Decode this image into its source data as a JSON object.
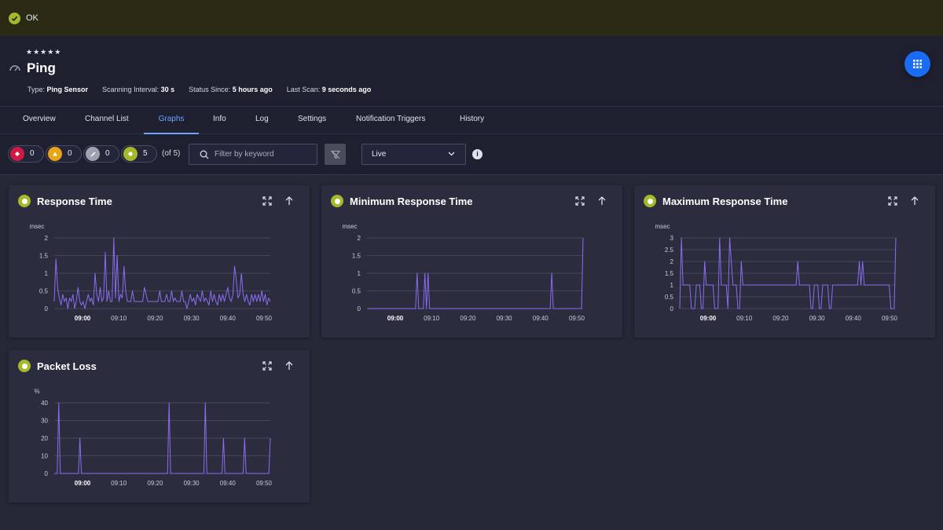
{
  "status_bar": {
    "icon": "check-circle-icon",
    "label": "OK",
    "color": "#a6b92a"
  },
  "sensor": {
    "stars": "★★★★★",
    "title": "Ping",
    "meta": [
      {
        "label": "Type:",
        "value": "Ping Sensor"
      },
      {
        "label": "Scanning Interval:",
        "value": "30 s"
      },
      {
        "label": "Status Since:",
        "value": "5 hours ago"
      },
      {
        "label": "Last Scan:",
        "value": "9 seconds ago"
      }
    ]
  },
  "tabs": [
    "Overview",
    "Channel List",
    "Graphs",
    "Info",
    "Log",
    "Settings",
    "Notification Triggers",
    "History"
  ],
  "active_tab": "Graphs",
  "toolbar": {
    "status_filters": [
      {
        "status": "down",
        "count": "0",
        "color": "#d01a45"
      },
      {
        "status": "warning",
        "count": "0",
        "color": "#e8a317"
      },
      {
        "status": "paused",
        "count": "0",
        "color": "#9fa2b0"
      },
      {
        "status": "up",
        "count": "5",
        "color": "#a6b92a"
      }
    ],
    "of_total": "(of 5)",
    "filter_placeholder": "Filter by keyword",
    "time_select": "Live"
  },
  "colors": {
    "accent": "#1a6cf5",
    "series": "#8c6cf0",
    "up": "#a6b92a"
  },
  "chart_data": [
    {
      "type": "line",
      "title": "Response Time",
      "ylabel": "msec",
      "ylim": [
        0,
        2
      ],
      "yticks": [
        "0",
        "0.5",
        "1",
        "1.5",
        "2"
      ],
      "xticks": [
        "09:00",
        "09:10",
        "09:20",
        "09:30",
        "09:40",
        "09:50"
      ],
      "series": [
        {
          "values": [
            0.2,
            1.4,
            0.6,
            0.3,
            0.1,
            0.4,
            0.2,
            0.3,
            0,
            0.3,
            0.2,
            0.4,
            0,
            0.2,
            0.6,
            0.2,
            0.1,
            0.2,
            0,
            0.2,
            0.4,
            0.2,
            0.3,
            0.1,
            1,
            0.4,
            0.2,
            0.6,
            0.2,
            0.3,
            1.6,
            0.2,
            0.5,
            0.2,
            0.2,
            2,
            0.3,
            1.5,
            0.2,
            0.4,
            0.3,
            1.2,
            0.5,
            0.2,
            0.2,
            0.2,
            0.5,
            0.2,
            0.2,
            0.2,
            0.2,
            0.2,
            0.2,
            0.6,
            0.4,
            0.2,
            0.2,
            0.2,
            0.2,
            0.2,
            0.2,
            0.2,
            0.5,
            0.2,
            0.2,
            0.2,
            0.4,
            0.2,
            0.2,
            0.5,
            0.2,
            0.3,
            0.2,
            0.2,
            0.2,
            0.5,
            0.2,
            0.2,
            0,
            0.2,
            0.4,
            0.2,
            0.3,
            0.1,
            0.4,
            0.3,
            0.2,
            0.5,
            0.2,
            0.3,
            0.2,
            0.1,
            0.5,
            0.2,
            0.4,
            0.2,
            0.1,
            0.4,
            0.2,
            0.4,
            0.2,
            0.4,
            0.6,
            0.3,
            0.2,
            0.4,
            1.2,
            0.8,
            0.3,
            0.4,
            1,
            0.4,
            0.2,
            0.4,
            0.2,
            0.1,
            0.4,
            0.2,
            0.4,
            0.2,
            0.4,
            0.2,
            0.5,
            0.2,
            0.4,
            0.1,
            0.3,
            0.2
          ]
        }
      ]
    },
    {
      "type": "line",
      "title": "Minimum Response Time",
      "ylabel": "msec",
      "ylim": [
        0,
        2
      ],
      "yticks": [
        "0",
        "0.5",
        "1",
        "1.5",
        "2"
      ],
      "xticks": [
        "09:00",
        "09:10",
        "09:20",
        "09:30",
        "09:40",
        "09:50"
      ],
      "series": [
        {
          "values": [
            0,
            0,
            0,
            0,
            0,
            0,
            0,
            0,
            0,
            0,
            0,
            0,
            0,
            0,
            0,
            0,
            0,
            0,
            0,
            0,
            0,
            0,
            0,
            0,
            0,
            0,
            0,
            0,
            0,
            0,
            0,
            0,
            1,
            0,
            0,
            0,
            0,
            1,
            0,
            1,
            0,
            0,
            0,
            0,
            0,
            0,
            0,
            0,
            0,
            0,
            0,
            0,
            0,
            0,
            0,
            0,
            0,
            0,
            0,
            0,
            0,
            0,
            0,
            0,
            0,
            0,
            0,
            0,
            0,
            0,
            0,
            0,
            0,
            0,
            0,
            0,
            0,
            0,
            0,
            0,
            0,
            0,
            0,
            0,
            0,
            0,
            0,
            0,
            0,
            0,
            0,
            0,
            0,
            0,
            0,
            0,
            0,
            0,
            0,
            0,
            0,
            0,
            0,
            0,
            0,
            0,
            0,
            0,
            0,
            0,
            0,
            0,
            0,
            0,
            0,
            0,
            0,
            0,
            1,
            0,
            0,
            0,
            0,
            0,
            0,
            0,
            0,
            0,
            0,
            0,
            0,
            0,
            0,
            0,
            0,
            0,
            0,
            0,
            2
          ]
        }
      ]
    },
    {
      "type": "line",
      "title": "Maximum Response Time",
      "ylabel": "msec",
      "ylim": [
        0,
        3
      ],
      "yticks": [
        "0",
        "0.5",
        "1",
        "1.5",
        "2",
        "2.5",
        "3"
      ],
      "xticks": [
        "09:00",
        "09:10",
        "09:20",
        "09:30",
        "09:40",
        "09:50"
      ],
      "series": [
        {
          "values": [
            0,
            3,
            1,
            1,
            1,
            1,
            1,
            0,
            0,
            0,
            1,
            1,
            1,
            0,
            0,
            2,
            1,
            1,
            1,
            1,
            1,
            0,
            0,
            0,
            3,
            1,
            1,
            1,
            1,
            0,
            3,
            2,
            1,
            1,
            1,
            0,
            0,
            2,
            1,
            1,
            1,
            1,
            1,
            1,
            1,
            1,
            1,
            1,
            1,
            1,
            1,
            1,
            1,
            1,
            1,
            1,
            1,
            1,
            1,
            1,
            1,
            1,
            1,
            1,
            1,
            1,
            1,
            1,
            1,
            1,
            1,
            2,
            1,
            1,
            1,
            1,
            1,
            1,
            1,
            0,
            0,
            1,
            1,
            1,
            0,
            0,
            1,
            1,
            1,
            1,
            0,
            0,
            1,
            1,
            1,
            1,
            1,
            1,
            1,
            1,
            1,
            1,
            1,
            1,
            1,
            1,
            1,
            1,
            2,
            1,
            2,
            1,
            1,
            1,
            1,
            1,
            1,
            1,
            1,
            1,
            1,
            1,
            1,
            1,
            1,
            1,
            1,
            0,
            0,
            0,
            3
          ]
        }
      ]
    },
    {
      "type": "line",
      "title": "Packet Loss",
      "ylabel": "%",
      "ylim": [
        0,
        40
      ],
      "yticks": [
        "0",
        "10",
        "20",
        "30",
        "40"
      ],
      "xticks": [
        "09:00",
        "09:10",
        "09:20",
        "09:30",
        "09:40",
        "09:50"
      ],
      "series": [
        {
          "values": [
            0,
            0,
            0,
            40,
            0,
            0,
            0,
            0,
            0,
            0,
            0,
            0,
            0,
            0,
            0,
            0,
            0,
            20,
            0,
            0,
            0,
            0,
            0,
            0,
            0,
            0,
            0,
            0,
            0,
            0,
            0,
            0,
            0,
            0,
            0,
            0,
            0,
            0,
            0,
            0,
            0,
            0,
            0,
            0,
            0,
            0,
            0,
            0,
            0,
            0,
            0,
            0,
            0,
            0,
            0,
            0,
            0,
            0,
            0,
            0,
            0,
            0,
            0,
            0,
            0,
            0,
            0,
            0,
            0,
            0,
            0,
            0,
            0,
            0,
            0,
            0,
            40,
            0,
            0,
            0,
            0,
            0,
            0,
            0,
            0,
            0,
            0,
            0,
            0,
            0,
            0,
            0,
            0,
            0,
            0,
            0,
            0,
            0,
            0,
            0,
            40,
            0,
            0,
            0,
            0,
            0,
            0,
            0,
            0,
            0,
            0,
            0,
            20,
            0,
            0,
            0,
            0,
            0,
            0,
            0,
            0,
            0,
            0,
            0,
            0,
            0,
            20,
            0,
            0,
            0,
            0,
            0,
            0,
            0,
            0,
            0,
            0,
            0,
            0,
            0,
            0,
            0,
            0,
            20
          ]
        }
      ]
    }
  ]
}
